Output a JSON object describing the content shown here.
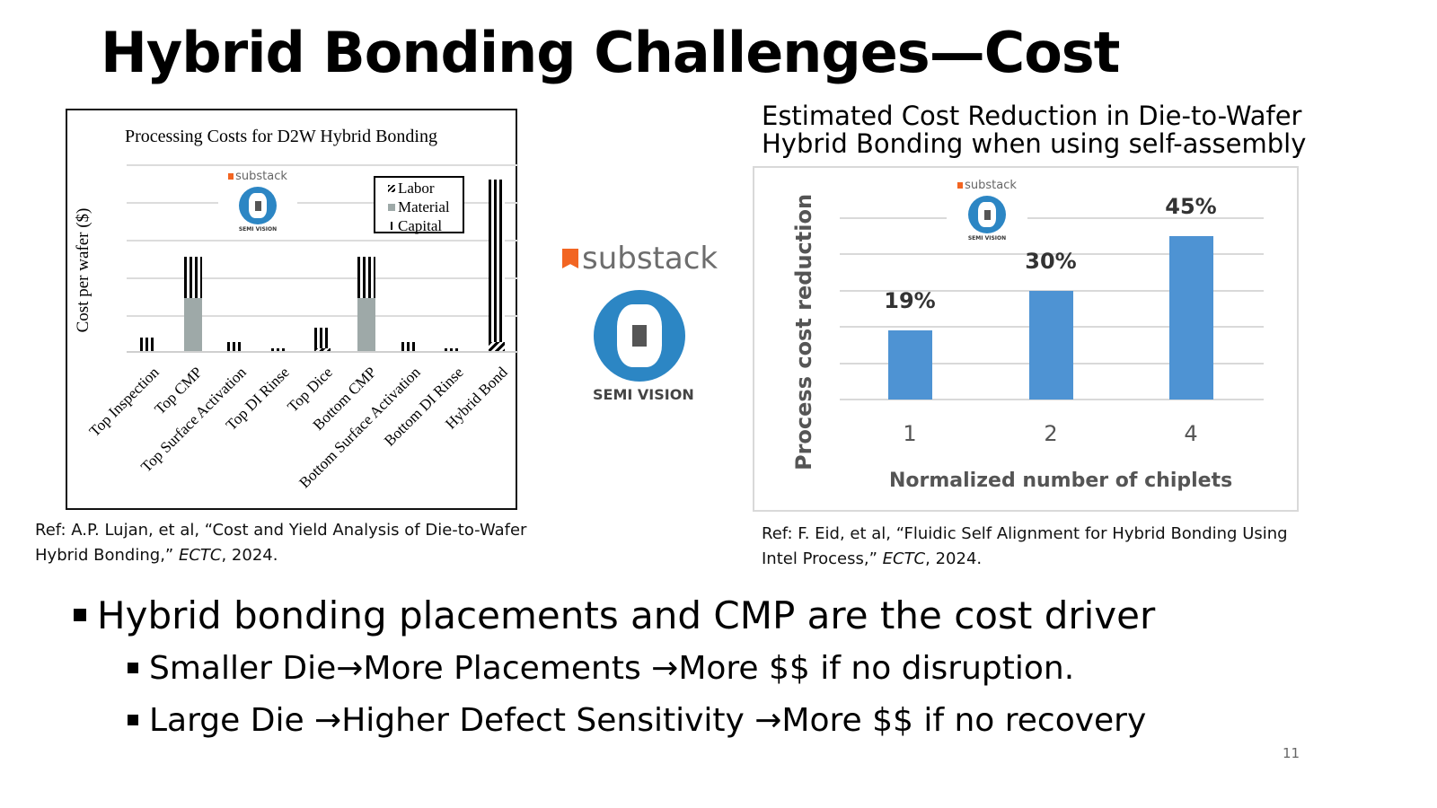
{
  "slide": {
    "title": "Hybrid Bonding Challenges—Cost",
    "page_number": "11"
  },
  "watermark": {
    "brand": "substack",
    "name": "SEMI VISION",
    "brand_color": "#f26522",
    "logo_color": "#2c86c4"
  },
  "left_chart": {
    "title": "Processing Costs for D2W Hybrid Bonding",
    "ylabel": "Cost per wafer ($)",
    "legend": [
      "Labor",
      "Material",
      "Capital"
    ],
    "reference_line1": "Ref: A.P. Lujan, et al, “Cost and Yield Analysis of Die-to-Wafer",
    "reference_line2_pre": "Hybrid Bonding,” ",
    "reference_venue": "ECTC",
    "reference_year": ", 2024."
  },
  "right_chart": {
    "title_line1": "Estimated Cost Reduction in Die-to-Wafer",
    "title_line2": "Hybrid Bonding when using self-assembly",
    "ylabel": "Process cost reduction",
    "xlabel": "Normalized number of chiplets",
    "value_labels": [
      "19%",
      "30%",
      "45%"
    ],
    "x_ticks": [
      "1",
      "2",
      "4"
    ],
    "reference_line1": "Ref: F. Eid, et al, “Fluidic Self Alignment for Hybrid Bonding Using",
    "reference_line2_pre": "Intel Process,” ",
    "reference_venue": "ECTC",
    "reference_year": ", 2024."
  },
  "bullets": {
    "main": "Hybrid bonding placements and CMP are the cost driver",
    "sub": [
      "Smaller Die→More Placements →More $$ if no disruption.",
      "Large Die →Higher Defect Sensitivity →More $$ if no recovery"
    ]
  },
  "chart_data": [
    {
      "type": "bar",
      "stacked": true,
      "title": "Processing Costs for D2W Hybrid Bonding",
      "xlabel": "",
      "ylabel": "Cost per wafer ($)",
      "y_units": "relative (gridline spacing = 1; no numeric ticks shown)",
      "categories": [
        "Top Inspection",
        "Top CMP",
        "Top Surface Activation",
        "Top DI Rinse",
        "Top Dice",
        "Bottom CMP",
        "Bottom Surface Activation",
        "Bottom DI Rinse",
        "Hybrid Bond"
      ],
      "series": [
        {
          "name": "Labor",
          "values": [
            0,
            0,
            0,
            0,
            0.05,
            0,
            0,
            0,
            0.25
          ]
        },
        {
          "name": "Material",
          "values": [
            0,
            1.4,
            0,
            0,
            0,
            1.4,
            0,
            0,
            0
          ]
        },
        {
          "name": "Capital",
          "values": [
            0.35,
            1.1,
            0.25,
            0.08,
            0.55,
            1.1,
            0.25,
            0.08,
            4.3
          ]
        }
      ],
      "ylim": [
        0,
        5
      ],
      "grid": true,
      "legend_position": "upper right (inside)"
    },
    {
      "type": "bar",
      "title": "Estimated Cost Reduction in Die-to-Wafer Hybrid Bonding when using self-assembly",
      "xlabel": "Normalized number of chiplets",
      "ylabel": "Process cost reduction",
      "categories": [
        "1",
        "2",
        "4"
      ],
      "values": [
        19,
        30,
        45
      ],
      "value_labels": [
        "19%",
        "30%",
        "45%"
      ],
      "ylim": [
        0,
        50
      ],
      "grid": true
    }
  ]
}
